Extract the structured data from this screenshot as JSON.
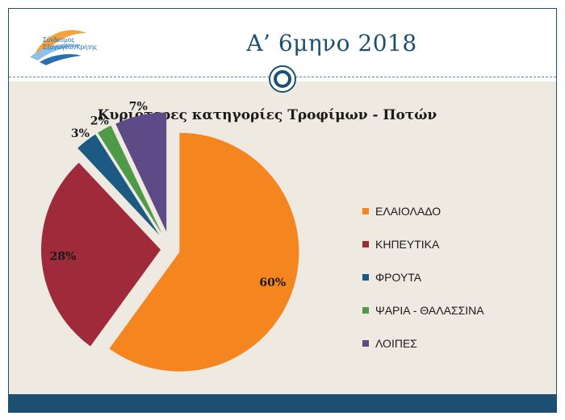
{
  "slide": {
    "title": "Α’ 6μηνο 2018",
    "logo_text_line1": "Σύνδεσμος",
    "logo_text_line2": "ΕξαγωγέωνΚρήτης"
  },
  "chart_data": {
    "type": "pie",
    "title": "Κυριότερες κατηγορίες Τροφίμων - Ποτών",
    "categories": [
      "ΕΛΑΙΟΛΑΔΟ",
      "ΚΗΠΕΥΤΙΚΑ",
      "ΦΡΟΥΤΑ",
      "ΨΑΡΙΑ - ΘΑΛΑΣΣΙΝΑ",
      "ΛΟΙΠΕΣ"
    ],
    "values": [
      60,
      28,
      3,
      2,
      7
    ],
    "data_labels": [
      "60%",
      "28%",
      "3%",
      "2%",
      "7%"
    ],
    "colors": [
      "#f5851f",
      "#9e2a3a",
      "#1c5a84",
      "#4e9a48",
      "#5e4a86"
    ],
    "legend_position": "right",
    "exploded": true
  }
}
